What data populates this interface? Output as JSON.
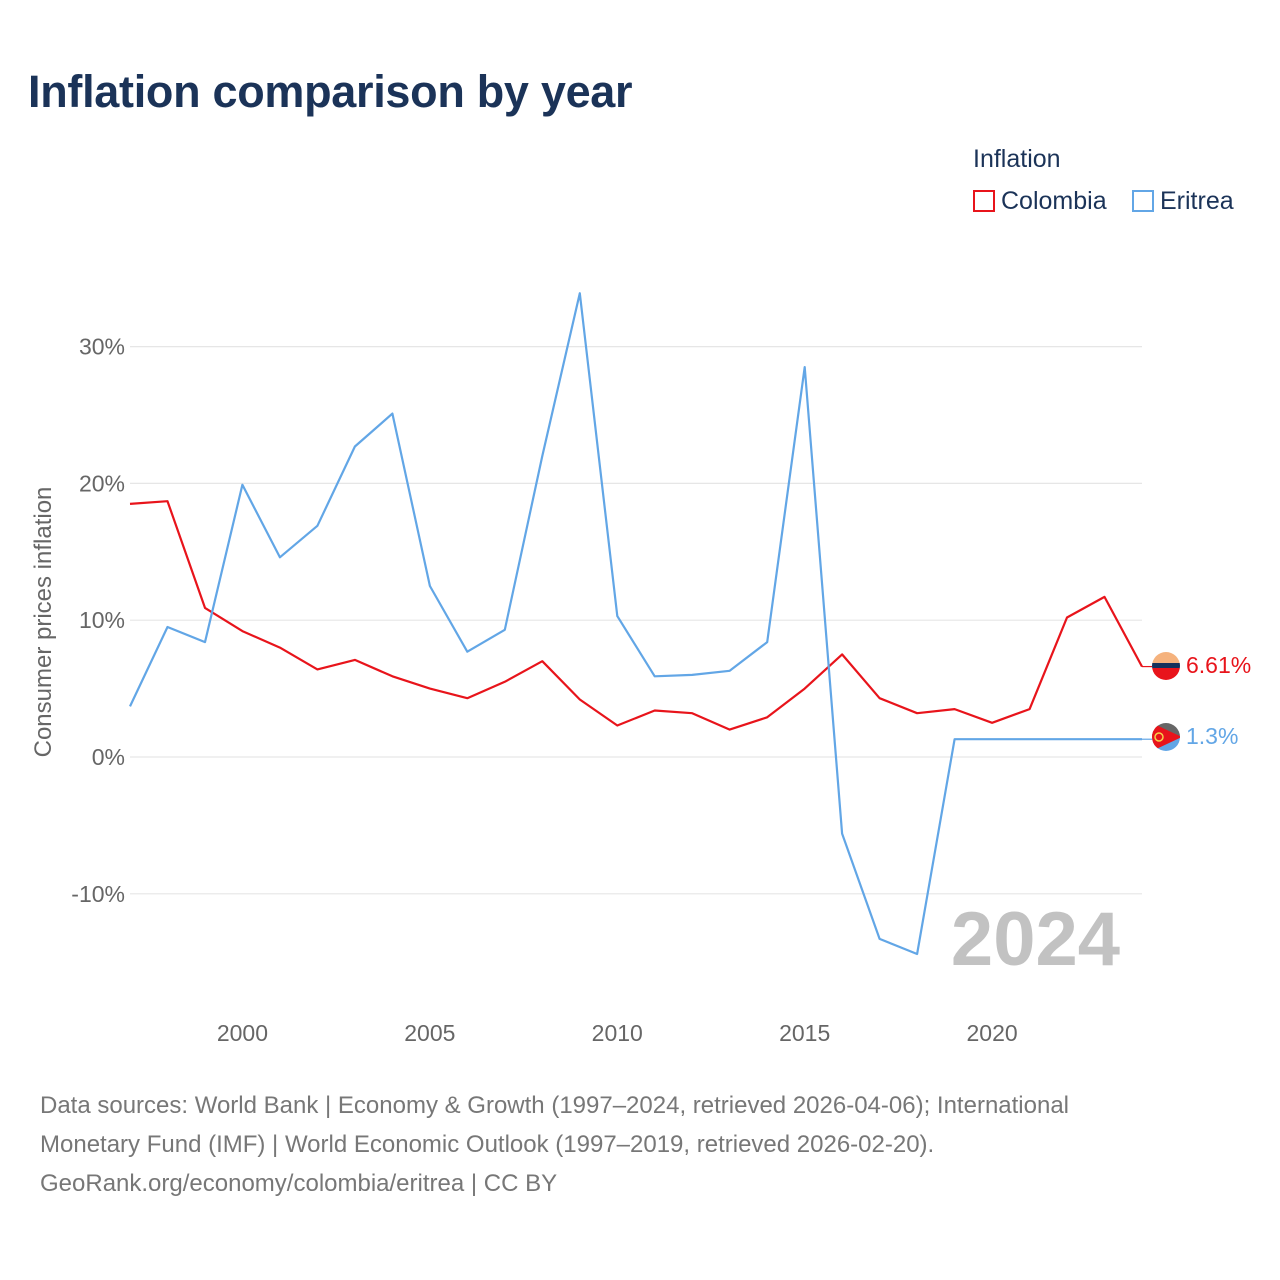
{
  "title": "Inflation comparison by year",
  "legend": {
    "title": "Inflation",
    "items": [
      {
        "label": "Colombia",
        "color": "#e8141b"
      },
      {
        "label": "Eritrea",
        "color": "#62a6e6"
      }
    ]
  },
  "chart_data": {
    "type": "line",
    "title": "Inflation comparison by year",
    "ylabel": "Consumer prices inflation",
    "xlabel": "",
    "xlim": [
      1997,
      2024
    ],
    "ylim": [
      -18,
      38
    ],
    "x_ticks": [
      2000,
      2005,
      2010,
      2015,
      2020
    ],
    "x_tick_labels": [
      "2000",
      "2005",
      "2010",
      "2015",
      "2020"
    ],
    "y_ticks": [
      -10,
      0,
      10,
      20,
      30
    ],
    "y_tick_labels": [
      "-10%",
      "0%",
      "10%",
      "20%",
      "30%"
    ],
    "grid": true,
    "year_watermark": "2024",
    "series": [
      {
        "name": "Colombia",
        "color": "#e8141b",
        "end_label": "6.61%",
        "x": [
          1997,
          1998,
          1999,
          2000,
          2001,
          2002,
          2003,
          2004,
          2005,
          2006,
          2007,
          2008,
          2009,
          2010,
          2011,
          2012,
          2013,
          2014,
          2015,
          2016,
          2017,
          2018,
          2019,
          2020,
          2021,
          2022,
          2023,
          2024
        ],
        "values": [
          18.5,
          18.7,
          10.9,
          9.2,
          8.0,
          6.4,
          7.1,
          5.9,
          5.0,
          4.3,
          5.5,
          7.0,
          4.2,
          2.3,
          3.4,
          3.2,
          2.0,
          2.9,
          5.0,
          7.5,
          4.3,
          3.2,
          3.5,
          2.5,
          3.5,
          10.2,
          11.7,
          6.61
        ]
      },
      {
        "name": "Eritrea",
        "color": "#62a6e6",
        "end_label": "1.3%",
        "x": [
          1997,
          1998,
          1999,
          2000,
          2001,
          2002,
          2003,
          2004,
          2005,
          2006,
          2007,
          2008,
          2009,
          2010,
          2011,
          2012,
          2013,
          2014,
          2015,
          2016,
          2017,
          2018,
          2019,
          2020,
          2021,
          2022,
          2023,
          2024
        ],
        "values": [
          3.7,
          9.5,
          8.4,
          19.9,
          14.6,
          16.9,
          22.7,
          25.1,
          12.5,
          7.7,
          9.3,
          22.0,
          33.9,
          10.3,
          5.9,
          6.0,
          6.3,
          8.4,
          28.5,
          -5.6,
          -13.3,
          -14.4,
          1.3,
          1.3,
          1.3,
          1.3,
          1.3,
          1.3
        ]
      }
    ]
  },
  "footer": {
    "line1": "Data sources: World Bank | Economy & Growth (1997–2024, retrieved 2026-04-06); International",
    "line2": "Monetary Fund (IMF) | World Economic Outlook (1997–2019, retrieved 2026-02-20).",
    "line3": "GeoRank.org/economy/colombia/eritrea | CC BY"
  }
}
